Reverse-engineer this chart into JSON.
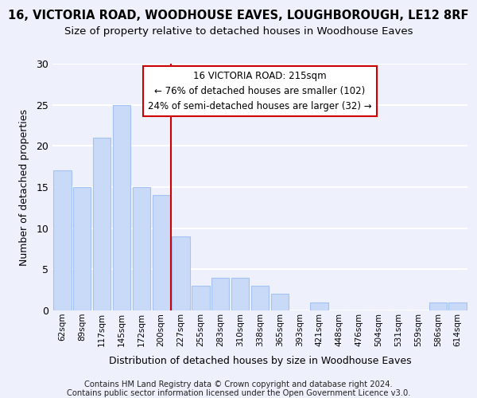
{
  "title": "16, VICTORIA ROAD, WOODHOUSE EAVES, LOUGHBOROUGH, LE12 8RF",
  "subtitle": "Size of property relative to detached houses in Woodhouse Eaves",
  "xlabel": "Distribution of detached houses by size in Woodhouse Eaves",
  "ylabel": "Number of detached properties",
  "footer_line1": "Contains HM Land Registry data © Crown copyright and database right 2024.",
  "footer_line2": "Contains public sector information licensed under the Open Government Licence v3.0.",
  "categories": [
    "62sqm",
    "89sqm",
    "117sqm",
    "145sqm",
    "172sqm",
    "200sqm",
    "227sqm",
    "255sqm",
    "283sqm",
    "310sqm",
    "338sqm",
    "365sqm",
    "393sqm",
    "421sqm",
    "448sqm",
    "476sqm",
    "504sqm",
    "531sqm",
    "559sqm",
    "586sqm",
    "614sqm"
  ],
  "values": [
    17,
    15,
    21,
    25,
    15,
    14,
    9,
    3,
    4,
    4,
    3,
    2,
    0,
    1,
    0,
    0,
    0,
    0,
    0,
    1,
    1
  ],
  "bar_color": "#c9daf8",
  "bar_edge_color": "#a4c2f4",
  "vline_x": 6.0,
  "vline_color": "#cc0000",
  "annotation_text": "16 VICTORIA ROAD: 215sqm\n← 76% of detached houses are smaller (102)\n24% of semi-detached houses are larger (32) →",
  "annotation_box_color": "#ffffff",
  "annotation_box_edge_color": "#cc0000",
  "ylim": [
    0,
    30
  ],
  "yticks": [
    0,
    5,
    10,
    15,
    20,
    25,
    30
  ],
  "bg_color": "#eef1fb",
  "grid_color": "#ffffff",
  "title_fontsize": 10.5,
  "subtitle_fontsize": 9.5
}
